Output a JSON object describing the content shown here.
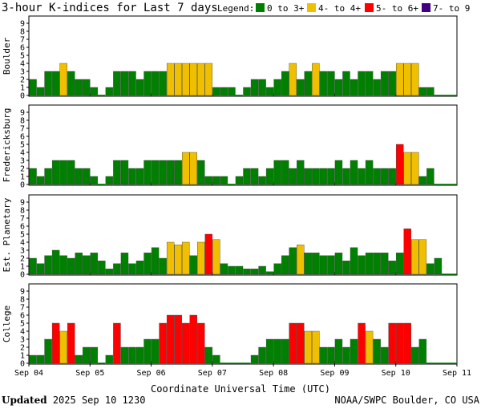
{
  "title": "3-hour K-indices for Last 7 days",
  "legend": {
    "label": "Legend:",
    "items": [
      {
        "text": "0 to 3+",
        "color": "#008000"
      },
      {
        "text": "4- to 4+",
        "color": "#f0c000"
      },
      {
        "text": "5- to 6+",
        "color": "#ff0000"
      },
      {
        "text": "7- to 9",
        "color": "#400080"
      }
    ]
  },
  "footer": {
    "updated_label": "Updated",
    "updated_value": "2025 Sep 10 1230",
    "source": "NOAA/SWPC Boulder, CO USA"
  },
  "chart_data": {
    "type": "bar",
    "xlabel": "Coordinate Universal Time (UTC)",
    "x_ticks": [
      "Sep 04",
      "Sep 05",
      "Sep 06",
      "Sep 07",
      "Sep 08",
      "Sep 09",
      "Sep 10",
      "Sep 11"
    ],
    "ylim": [
      0,
      9
    ],
    "y_ticks": [
      0,
      1,
      2,
      3,
      4,
      5,
      6,
      7,
      8,
      9
    ],
    "intervals_per_day": 8,
    "days": 7,
    "series": [
      {
        "name": "Boulder",
        "values": [
          2,
          1,
          3,
          3,
          4,
          3,
          2,
          2,
          1,
          0,
          1,
          3,
          3,
          3,
          2,
          3,
          3,
          3,
          4,
          4,
          4,
          4,
          4,
          4,
          1,
          1,
          1,
          0,
          1,
          2,
          2,
          1,
          2,
          3,
          4,
          2,
          3,
          4,
          3,
          3,
          2,
          3,
          2,
          3,
          3,
          2,
          3,
          3,
          4,
          4,
          4,
          1,
          1,
          0,
          0,
          0
        ]
      },
      {
        "name": "Fredericksburg",
        "values": [
          2,
          1,
          2,
          3,
          3,
          3,
          2,
          2,
          1,
          0,
          1,
          3,
          3,
          2,
          2,
          3,
          3,
          3,
          3,
          3,
          4,
          4,
          3,
          1,
          1,
          1,
          0,
          1,
          2,
          2,
          1,
          2,
          3,
          3,
          2,
          3,
          2,
          2,
          2,
          2,
          3,
          2,
          3,
          2,
          3,
          2,
          2,
          2,
          5,
          4,
          4,
          1,
          2,
          0,
          0,
          0
        ]
      },
      {
        "name": "Est. Planetary",
        "values": [
          2,
          1.33,
          2.33,
          3,
          2.33,
          2,
          2.67,
          2.33,
          2.67,
          1.67,
          0.67,
          1.33,
          2.67,
          1.33,
          1.67,
          2.67,
          3.33,
          2,
          4,
          3.67,
          4,
          2.33,
          4,
          5,
          4.33,
          1.33,
          1,
          1,
          0.67,
          0.67,
          1,
          0.33,
          1.33,
          2.33,
          3.33,
          3.67,
          2.67,
          2.67,
          2.33,
          2.33,
          2.67,
          1.67,
          3.33,
          2.33,
          2.67,
          2.67,
          2.67,
          1.67,
          2.67,
          5.67,
          4.33,
          4.33,
          1.33,
          2,
          0,
          0
        ]
      },
      {
        "name": "College",
        "values": [
          1,
          1,
          3,
          5,
          4,
          5,
          1,
          2,
          2,
          0,
          1,
          5,
          2,
          2,
          2,
          3,
          3,
          5,
          6,
          6,
          5,
          6,
          5,
          2,
          1,
          0,
          0,
          0,
          0,
          1,
          2,
          3,
          3,
          3,
          5,
          5,
          4,
          4,
          2,
          2,
          3,
          2,
          3,
          5,
          4,
          3,
          2,
          5,
          5,
          5,
          2,
          3,
          0,
          0,
          0,
          0
        ]
      }
    ]
  }
}
